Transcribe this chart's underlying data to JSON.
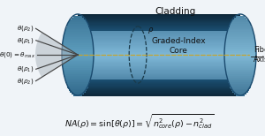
{
  "bg_color": "#f0f4f8",
  "cylinder_dark": "#1b4f72",
  "cylinder_mid": "#2e86c1",
  "cylinder_light": "#aed6f1",
  "cylinder_top_light": "#7fb3d3",
  "rim_color": "#1a4a6e",
  "inner_ellipse_color": "#1a3a4a",
  "axis_line_color": "#c8a428",
  "rays_color": "#444444",
  "cone_fill_color": "#b0b8c0",
  "text_color": "#111111",
  "label_color": "#333333",
  "title_cladding": "Cladding",
  "title_core": "Graded-Index\nCore",
  "title_axis": "Fiber\nAxis",
  "figsize": [
    3.0,
    1.54
  ],
  "dpi": 100
}
